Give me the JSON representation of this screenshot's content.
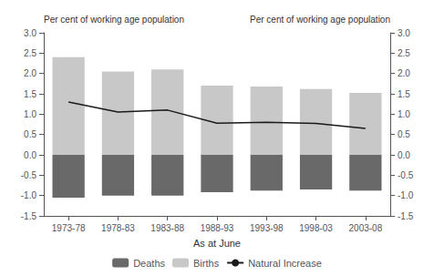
{
  "chart_data": {
    "type": "bar",
    "categories": [
      "1973-78",
      "1978-83",
      "1983-88",
      "1988-93",
      "1993-98",
      "1998-03",
      "2003-08"
    ],
    "series": [
      {
        "name": "Deaths",
        "type": "bar",
        "color": "#696969",
        "values": [
          -1.05,
          -1.0,
          -1.0,
          -0.92,
          -0.88,
          -0.85,
          -0.88
        ]
      },
      {
        "name": "Births",
        "type": "bar",
        "color": "#c8c8c8",
        "values": [
          2.4,
          2.05,
          2.1,
          1.7,
          1.68,
          1.62,
          1.52
        ]
      },
      {
        "name": "Natural Increase",
        "type": "line",
        "axis": "y2",
        "color": "#1a1a1a",
        "values": [
          1.3,
          1.05,
          1.1,
          0.78,
          0.8,
          0.77,
          0.65
        ]
      }
    ],
    "xlabel": "As at June",
    "ylabel": "Per cent of working age population",
    "y2label": "Per cent of working age population",
    "ylim": [
      -1.5,
      3.0
    ],
    "yticks": [
      -1.5,
      {
        "value": -1.0,
        "label": "-1.0"
      },
      -0.5,
      {
        "value": 0.0,
        "label": "0.0"
      },
      0.5,
      {
        "value": 1.0,
        "label": "1.0"
      },
      1.5,
      {
        "value": 2.0,
        "label": "2.0"
      },
      2.5,
      {
        "value": 3.0,
        "label": "3.0"
      }
    ],
    "y2lim": [
      -1.5,
      3.0
    ],
    "y2ticks": [
      -1.5,
      {
        "value": -1.0,
        "label": "-1.0"
      },
      -0.5,
      {
        "value": 0.0,
        "label": "0.0"
      },
      0.5,
      {
        "value": 1.0,
        "label": "1.0"
      },
      1.5,
      {
        "value": 2.0,
        "label": "2.0"
      },
      2.5,
      {
        "value": 3.0,
        "label": "3.0"
      }
    ],
    "grid": false,
    "legend": "bottom"
  }
}
